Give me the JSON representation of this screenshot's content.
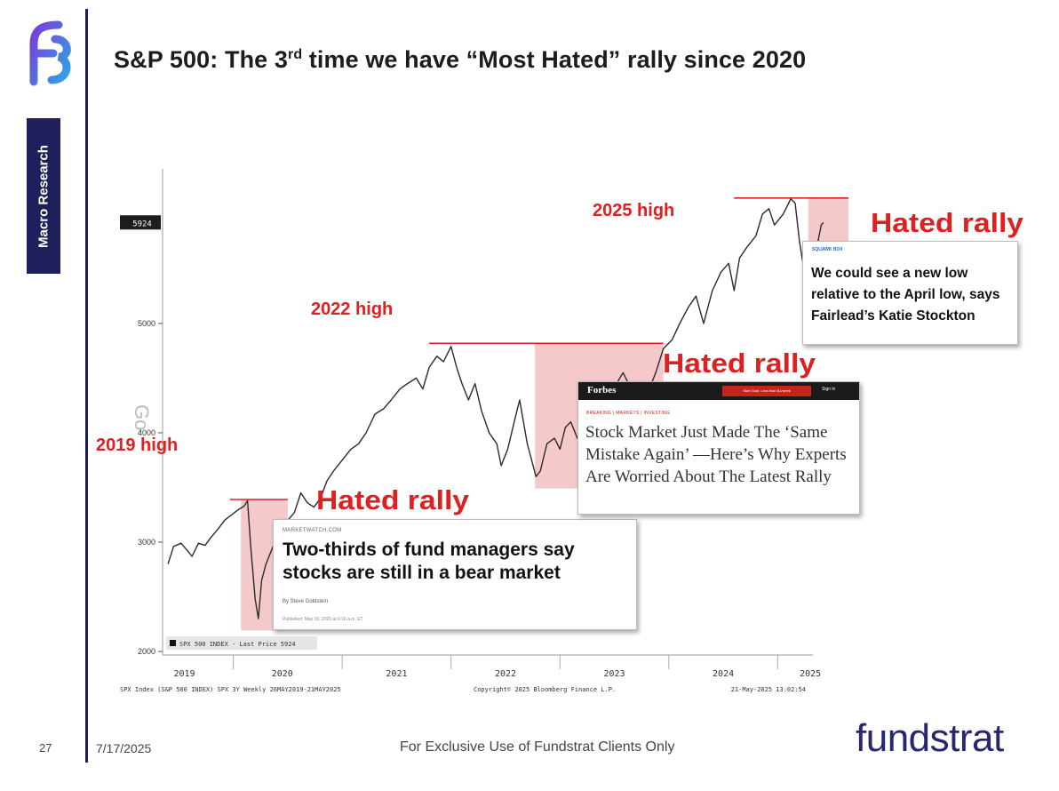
{
  "slide": {
    "title_main": "S&P 500: The 3",
    "title_sup": "rd",
    "title_rest": " time we have “Most Hated” rally since 2020",
    "sidebar_tab": "Macro Research",
    "page_number": "27",
    "date": "7/17/2025",
    "footer": "For Exclusive Use of Fundstrat Clients Only",
    "brand": "fundstrat",
    "colors": {
      "accent_red": "#e02020",
      "brand_navy": "#262673",
      "shade": "#f3c0c0",
      "price_line": "#2a2a2a"
    }
  },
  "chart_data": {
    "type": "line",
    "title": "",
    "xlabel": "",
    "ylabel": "",
    "ylim": [
      2000,
      6300
    ],
    "xlim": [
      2019.35,
      2025.65
    ],
    "y_ticks": [
      {
        "value": 2000,
        "label": "2000"
      },
      {
        "value": 3000,
        "label": "3000"
      },
      {
        "value": 4000,
        "label": "4000"
      },
      {
        "value": 5000,
        "label": "5000"
      }
    ],
    "x_labels": [
      {
        "x": 2019.55,
        "label": "2019"
      },
      {
        "x": 2020.45,
        "label": "2020"
      },
      {
        "x": 2021.5,
        "label": "2021"
      },
      {
        "x": 2022.5,
        "label": "2022"
      },
      {
        "x": 2023.5,
        "label": "2023"
      },
      {
        "x": 2024.5,
        "label": "2024"
      },
      {
        "x": 2025.3,
        "label": "2025"
      }
    ],
    "year_boundaries": [
      2020.0,
      2021.0,
      2022.0,
      2023.0,
      2024.0,
      2025.0
    ],
    "last_price": {
      "value": 5924,
      "label": "5924"
    },
    "legend": "SPX 500 INDEX - Last Price 5924",
    "logo_watermark": "Go",
    "footer_left": "SPX Index (S&P 500 INDEX) SPX 3Y  Weekly 26MAY2019-21MAY2025",
    "footer_mid": "Copyright© 2025 Bloomberg Finance L.P.",
    "footer_right": "21-May-2025 13:02:54",
    "series": [
      {
        "points": [
          [
            2019.4,
            2800
          ],
          [
            2019.45,
            2960
          ],
          [
            2019.52,
            2990
          ],
          [
            2019.58,
            2920
          ],
          [
            2019.62,
            2870
          ],
          [
            2019.68,
            2990
          ],
          [
            2019.74,
            2970
          ],
          [
            2019.8,
            3050
          ],
          [
            2019.86,
            3120
          ],
          [
            2019.92,
            3200
          ],
          [
            2019.97,
            3240
          ],
          [
            2020.05,
            3300
          ],
          [
            2020.1,
            3330
          ],
          [
            2020.13,
            3380
          ],
          [
            2020.16,
            2950
          ],
          [
            2020.2,
            2480
          ],
          [
            2020.23,
            2300
          ],
          [
            2020.26,
            2650
          ],
          [
            2020.3,
            2800
          ],
          [
            2020.36,
            2950
          ],
          [
            2020.42,
            3100
          ],
          [
            2020.5,
            3200
          ],
          [
            2020.56,
            3270
          ],
          [
            2020.62,
            3450
          ],
          [
            2020.68,
            3360
          ],
          [
            2020.74,
            3320
          ],
          [
            2020.8,
            3400
          ],
          [
            2020.86,
            3560
          ],
          [
            2020.92,
            3650
          ],
          [
            2021.0,
            3750
          ],
          [
            2021.08,
            3850
          ],
          [
            2021.15,
            3900
          ],
          [
            2021.22,
            4000
          ],
          [
            2021.3,
            4170
          ],
          [
            2021.38,
            4220
          ],
          [
            2021.45,
            4300
          ],
          [
            2021.53,
            4400
          ],
          [
            2021.6,
            4450
          ],
          [
            2021.68,
            4500
          ],
          [
            2021.74,
            4400
          ],
          [
            2021.8,
            4600
          ],
          [
            2021.87,
            4700
          ],
          [
            2021.93,
            4650
          ],
          [
            2022.0,
            4790
          ],
          [
            2022.05,
            4600
          ],
          [
            2022.1,
            4450
          ],
          [
            2022.16,
            4300
          ],
          [
            2022.22,
            4450
          ],
          [
            2022.28,
            4200
          ],
          [
            2022.35,
            4000
          ],
          [
            2022.42,
            3900
          ],
          [
            2022.46,
            3700
          ],
          [
            2022.52,
            3850
          ],
          [
            2022.58,
            4100
          ],
          [
            2022.63,
            4300
          ],
          [
            2022.7,
            3900
          ],
          [
            2022.78,
            3600
          ],
          [
            2022.82,
            3650
          ],
          [
            2022.88,
            3900
          ],
          [
            2022.95,
            3950
          ],
          [
            2023.0,
            3850
          ],
          [
            2023.05,
            4050
          ],
          [
            2023.1,
            4100
          ],
          [
            2023.16,
            3950
          ],
          [
            2023.22,
            4100
          ],
          [
            2023.3,
            4150
          ],
          [
            2023.38,
            4200
          ],
          [
            2023.44,
            4300
          ],
          [
            2023.52,
            4450
          ],
          [
            2023.58,
            4550
          ],
          [
            2023.63,
            4450
          ],
          [
            2023.7,
            4300
          ],
          [
            2023.76,
            4200
          ],
          [
            2023.82,
            4400
          ],
          [
            2023.88,
            4550
          ],
          [
            2023.95,
            4770
          ],
          [
            2024.03,
            4850
          ],
          [
            2024.1,
            5000
          ],
          [
            2024.18,
            5150
          ],
          [
            2024.25,
            5250
          ],
          [
            2024.32,
            5000
          ],
          [
            2024.4,
            5300
          ],
          [
            2024.48,
            5470
          ],
          [
            2024.55,
            5550
          ],
          [
            2024.6,
            5300
          ],
          [
            2024.65,
            5600
          ],
          [
            2024.72,
            5700
          ],
          [
            2024.8,
            5800
          ],
          [
            2024.86,
            6000
          ],
          [
            2024.92,
            6050
          ],
          [
            2024.97,
            5900
          ],
          [
            2025.05,
            6000
          ],
          [
            2025.12,
            6140
          ],
          [
            2025.16,
            6100
          ],
          [
            2025.2,
            5750
          ],
          [
            2025.24,
            5500
          ],
          [
            2025.28,
            5000
          ],
          [
            2025.31,
            5400
          ],
          [
            2025.34,
            5600
          ],
          [
            2025.37,
            5750
          ],
          [
            2025.4,
            5900
          ],
          [
            2025.42,
            5924
          ]
        ]
      }
    ],
    "annotations": [
      {
        "label": "2019 high",
        "level": 3390,
        "x_start": 2019.97,
        "x_end": 2020.5
      },
      {
        "label": "2022 high",
        "level": 4818,
        "x_start": 2021.8,
        "x_end": 2023.95
      },
      {
        "label": "2025 high",
        "level": 6147,
        "x_start": 2024.6,
        "x_end": 2025.65
      }
    ],
    "hated_rallies": [
      {
        "label": "Hated rally",
        "x_start": 2020.07,
        "x_end": 2020.5,
        "y_low": 2191,
        "y_high": 3390
      },
      {
        "label": "Hated rally",
        "x_start": 2022.77,
        "x_end": 2023.95,
        "y_low": 3491,
        "y_high": 4818
      },
      {
        "label": "Hated rally",
        "x_start": 2025.28,
        "x_end": 2025.65,
        "y_low": 4835,
        "y_high": 6147
      }
    ]
  },
  "news": {
    "marketwatch": {
      "source": "MARKETWATCH.COM",
      "headline": "Two-thirds of fund managers say stocks are still in a bear market",
      "byline": "By Steve Goldstein",
      "published": "Published: May 19, 2020 at 6:16 a.m. ET"
    },
    "forbes": {
      "brand": "Forbes",
      "button": "Start Gold: Less than $1/week",
      "signin": "Sign in",
      "tag": "BREAKING | MARKETS | INVESTING",
      "headline": "Stock Market Just Made The ‘Same Mistake Again’ —Here’s Why Experts Are Worried About The Latest Rally"
    },
    "squawk": {
      "tag": "SQUAWK BOX",
      "headline": "We could see a new low relative to the April low, says Fairlead’s Katie Stockton"
    }
  }
}
